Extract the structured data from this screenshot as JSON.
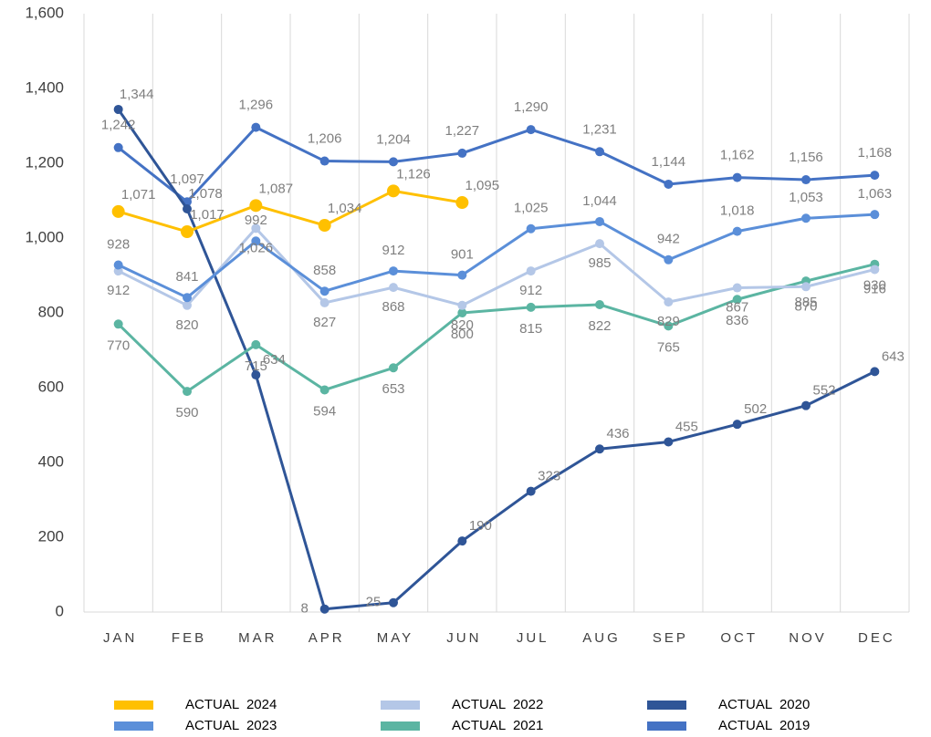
{
  "chart_data": {
    "type": "line",
    "categories": [
      "JAN",
      "FEB",
      "MAR",
      "APR",
      "MAY",
      "JUN",
      "JUL",
      "AUG",
      "SEP",
      "OCT",
      "NOV",
      "DEC"
    ],
    "series": [
      {
        "name": "ACTUAL  2024",
        "color": "#ffc000",
        "values": [
          1071,
          1017,
          1087,
          1034,
          1126,
          1095,
          null,
          null,
          null,
          null,
          null,
          null
        ],
        "value_labels": [
          "1,071",
          "1,017",
          "1,087",
          "1,034",
          "1,126",
          "1,095",
          null,
          null,
          null,
          null,
          null,
          null
        ]
      },
      {
        "name": "ACTUAL  2023",
        "color": "#5b8fd9",
        "values": [
          928,
          841,
          992,
          858,
          912,
          901,
          1025,
          1044,
          942,
          1018,
          1053,
          1063
        ],
        "value_labels": [
          "928",
          "841",
          "992",
          "858",
          "912",
          "901",
          "1,025",
          "1,044",
          "942",
          "1,018",
          "1,053",
          "1,063"
        ]
      },
      {
        "name": "ACTUAL  2022",
        "color": "#b4c7e7",
        "values": [
          912,
          820,
          1026,
          827,
          868,
          820,
          912,
          985,
          829,
          867,
          870,
          916
        ],
        "value_labels": [
          "912",
          "820",
          "1,026",
          "827",
          "868",
          "820",
          "912",
          "985",
          "829",
          "867",
          "870",
          "916"
        ]
      },
      {
        "name": "ACTUAL  2021",
        "color": "#5bb5a2",
        "values": [
          770,
          590,
          715,
          594,
          653,
          800,
          815,
          822,
          765,
          836,
          885,
          930
        ],
        "value_labels": [
          "770",
          "590",
          "715",
          "594",
          "653",
          "800",
          "815",
          "822",
          "765",
          "836",
          "885",
          "930"
        ]
      },
      {
        "name": "ACTUAL  2020",
        "color": "#2f5597",
        "values": [
          1344,
          1078,
          634,
          8,
          25,
          190,
          323,
          436,
          455,
          502,
          552,
          643
        ],
        "value_labels": [
          "1,344",
          "1,078",
          "634",
          "8",
          "25",
          "190",
          "323",
          "436",
          "455",
          "502",
          "552",
          "643"
        ]
      },
      {
        "name": "ACTUAL  2019",
        "color": "#4472c4",
        "values": [
          1242,
          1097,
          1296,
          1206,
          1204,
          1227,
          1290,
          1231,
          1144,
          1162,
          1156,
          1168
        ],
        "value_labels": [
          "1,242",
          "1,097",
          "1,296",
          "1,206",
          "1,204",
          "1,227",
          "1,290",
          "1,231",
          "1,144",
          "1,162",
          "1,156",
          "1,168"
        ]
      }
    ],
    "ylim": [
      0,
      1600
    ],
    "yticks": [
      0,
      200,
      400,
      600,
      800,
      {
        "value": 1000,
        "label": "1,000"
      },
      {
        "value": 1200,
        "label": "1,200"
      },
      {
        "value": 1400,
        "label": "1,400"
      },
      {
        "value": 1600,
        "label": "1,600"
      }
    ],
    "grid": true
  }
}
